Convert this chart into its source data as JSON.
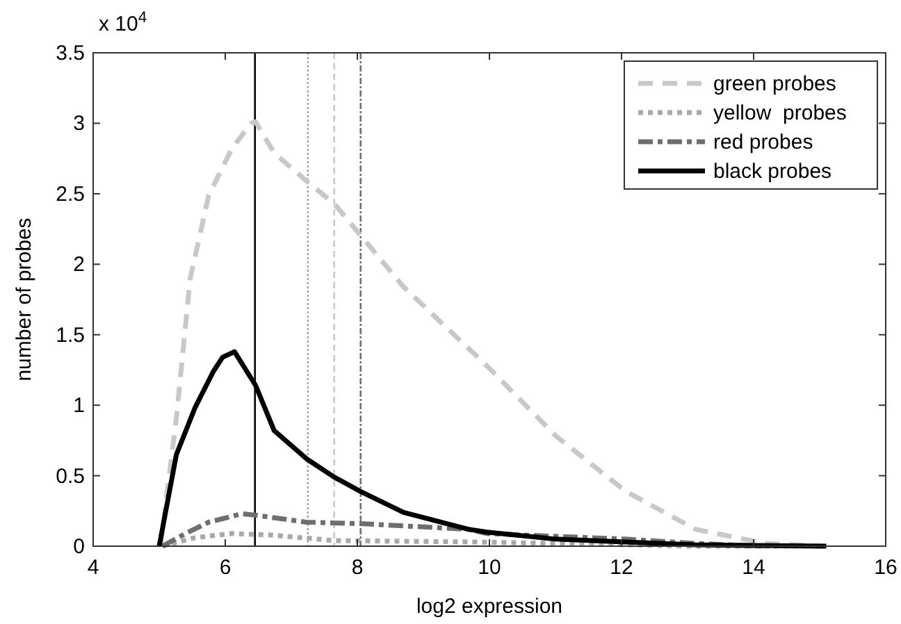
{
  "chart_data": {
    "type": "line",
    "xlabel": "log2 expression",
    "ylabel": "number of probes",
    "annotations": [
      "x 10$^{4}$"
    ],
    "xlim": [
      4,
      16
    ],
    "xticks": [
      4,
      6,
      8,
      10,
      12,
      14,
      16
    ],
    "ylim": [
      0,
      3.5
    ],
    "yticks": [
      0,
      0.5,
      1,
      1.5,
      2,
      2.5,
      3,
      3.5
    ],
    "grid": false,
    "legend": "top right",
    "series": [
      {
        "name": "green probes",
        "color": "#c8c8c8",
        "line_style": "dashed",
        "x": [
          5.02,
          5.26,
          5.47,
          5.75,
          6.1,
          6.39,
          6.46,
          6.74,
          7.23,
          7.65,
          8.04,
          8.7,
          9.96,
          11.01,
          12.06,
          13.12,
          14.17,
          15.07
        ],
        "values": [
          0,
          0.91,
          1.9,
          2.49,
          2.82,
          3.0,
          3.01,
          2.79,
          2.59,
          2.43,
          2.21,
          1.84,
          1.28,
          0.78,
          0.39,
          0.12,
          0.02,
          0
        ]
      },
      {
        "name": "yellow  probes",
        "color": "#a9a9a9",
        "line_style": "dotted",
        "x": [
          5.05,
          5.54,
          6.1,
          6.67,
          7.65,
          9.68,
          11.0,
          13.1,
          15.0
        ],
        "values": [
          0,
          0.06,
          0.09,
          0.08,
          0.04,
          0.03,
          0.02,
          0,
          0
        ]
      },
      {
        "name": "red probes",
        "color": "#6e6e6e",
        "line_style": "dashdot",
        "x": [
          5.05,
          5.4,
          5.75,
          6.25,
          6.46,
          7.23,
          8.04,
          9.68,
          9.96,
          11.0,
          12.06,
          13.1,
          14.17
        ],
        "values": [
          0,
          0.09,
          0.17,
          0.23,
          0.22,
          0.17,
          0.16,
          0.12,
          0.09,
          0.07,
          0.05,
          0.02,
          0
        ]
      },
      {
        "name": "black probes",
        "color": "#000000",
        "line_style": "solid",
        "x": [
          5.0,
          5.26,
          5.54,
          5.82,
          5.96,
          6.14,
          6.46,
          6.74,
          7.23,
          7.65,
          8.04,
          8.7,
          9.68,
          9.96,
          11.0,
          12.06,
          13.1,
          15.1
        ],
        "values": [
          0,
          0.65,
          0.98,
          1.24,
          1.34,
          1.38,
          1.14,
          0.82,
          0.62,
          0.49,
          0.39,
          0.24,
          0.12,
          0.1,
          0.05,
          0.03,
          0.01,
          0
        ]
      }
    ],
    "ref_lines": [
      {
        "axis": "x",
        "value": 6.45,
        "color": "#000000",
        "line_style": "solid"
      },
      {
        "axis": "x",
        "value": 7.25,
        "color": "#a9a9a9",
        "line_style": "dotted"
      },
      {
        "axis": "x",
        "value": 7.65,
        "color": "#c8c8c8",
        "line_style": "dashed"
      },
      {
        "axis": "x",
        "value": 8.05,
        "color": "#6e6e6e",
        "line_style": "dashdot"
      }
    ]
  }
}
